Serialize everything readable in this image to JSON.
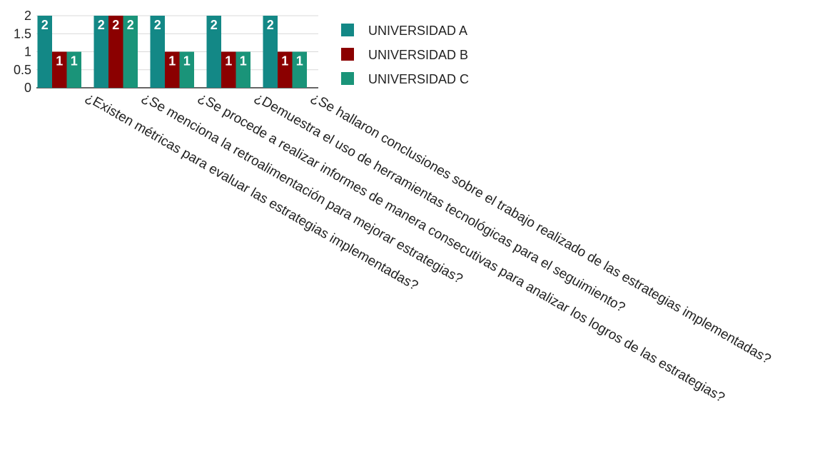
{
  "chart_data": {
    "type": "bar",
    "categories": [
      "¿Existen métricas para evaluar las estrategias implementadas?",
      "¿Se menciona la retroalimentación para mejorar estrategias?",
      "¿Se procede a realizar informes de manera consecutivas para analizar los logros de las estrategias?",
      "¿Demuestra el uso de herramientas tecnológicas para el seguimiento?",
      "¿Se hallaron conclusiones sobre el trabajo realizado de las estrategias implementadas?"
    ],
    "series": [
      {
        "name": "UNIVERSIDAD A",
        "color": "#138886",
        "values": [
          2,
          2,
          2,
          2,
          2
        ]
      },
      {
        "name": "UNIVERSIDAD B",
        "color": "#8b0000",
        "values": [
          1,
          2,
          1,
          1,
          1
        ]
      },
      {
        "name": "UNIVERSIDAD C",
        "color": "#1a9479",
        "values": [
          1,
          2,
          1,
          1,
          1
        ]
      }
    ],
    "ylim": [
      0,
      2
    ],
    "yticks": [
      "0",
      "0.5",
      "1",
      "1.5",
      "2"
    ],
    "grid": true,
    "legend_position": "right",
    "data_labels": true
  }
}
